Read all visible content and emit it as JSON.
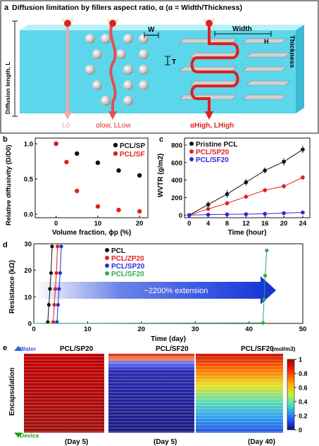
{
  "panel_a": {
    "label": "a",
    "title": "Diffusion limitation by fillers aspect ratio, α (α = Width/Thickness)",
    "diffusion_length": "Diffusion length, L",
    "W": "W",
    "T": "T",
    "width": "Width",
    "thickness": "Thickness",
    "H": "H",
    "L0": "L0",
    "alpha_low": "αlow, LLow",
    "alpha_high": "αHigh, LHigh"
  },
  "panel_b": {
    "label": "b",
    "chart_data": {
      "type": "scatter",
      "xlabel": "Volume fraction, ϕp (%)",
      "ylabel": "Relative diffusivity (D/D0)",
      "xlim": [
        -5,
        22
      ],
      "ylim": [
        -0.05,
        1.08
      ],
      "xticks": [
        "0",
        "10",
        "20"
      ],
      "yticks": [
        "0.0",
        "0.5",
        "1.0"
      ],
      "legend_position": "top-right",
      "series": [
        {
          "name": "PCL/SP",
          "color": "#111111",
          "x": [
            0,
            5,
            10,
            15,
            20
          ],
          "y": [
            1.0,
            0.86,
            0.73,
            0.62,
            0.55
          ]
        },
        {
          "name": "PCL/SF",
          "color": "#e02020",
          "x": [
            0,
            2.5,
            5,
            10,
            15,
            20
          ],
          "y": [
            1.0,
            0.74,
            0.33,
            0.11,
            0.06,
            0.04
          ]
        }
      ]
    }
  },
  "panel_c": {
    "label": "c",
    "chart_data": {
      "type": "line",
      "xlabel": "Time (hour)",
      "ylabel": "WVTR (g/m2)",
      "xlim": [
        -1,
        25.5
      ],
      "ylim": [
        -30,
        880
      ],
      "xticks": [
        "0",
        "4",
        "8",
        "12",
        "16",
        "20",
        "24"
      ],
      "yticks": [
        "0",
        "200",
        "400",
        "600",
        "800"
      ],
      "legend_position": "top-left",
      "series": [
        {
          "name": "Pristine PCL",
          "color": "#111111",
          "x": [
            0,
            4,
            8,
            12,
            16,
            20,
            24
          ],
          "y": [
            0,
            120,
            240,
            375,
            510,
            610,
            750
          ],
          "err": [
            10,
            40,
            45,
            40,
            35,
            45,
            45
          ]
        },
        {
          "name": "PCL/SP20",
          "color": "#e02020",
          "x": [
            0,
            4,
            8,
            12,
            16,
            20,
            24
          ],
          "y": [
            0,
            70,
            135,
            210,
            285,
            330,
            430
          ],
          "err": [
            8,
            20,
            25,
            25,
            25,
            30,
            30
          ]
        },
        {
          "name": "PCL/SF20",
          "color": "#2a2ae0",
          "x": [
            0,
            4,
            8,
            12,
            16,
            20,
            24
          ],
          "y": [
            0,
            5,
            8,
            10,
            15,
            22,
            30
          ],
          "err": [
            3,
            4,
            4,
            4,
            4,
            5,
            6
          ]
        }
      ]
    }
  },
  "panel_d": {
    "label": "d",
    "chart_data": {
      "type": "line",
      "xlabel": "Time (day)",
      "ylabel": "Resistance (kΩ)",
      "xlim": [
        0,
        50
      ],
      "ylim": [
        0,
        30
      ],
      "xticks": [
        "0",
        "10",
        "20",
        "30",
        "40",
        "50"
      ],
      "yticks": [
        "0",
        "10",
        "20",
        "30"
      ],
      "legend_position": "top-left",
      "annotation": "~2200% extension",
      "series": [
        {
          "name": "PCL",
          "color": "#111111",
          "x": [
            2.6,
            2.8,
            3.0,
            3.2,
            3.4
          ],
          "y": [
            0.5,
            7,
            13,
            19,
            29
          ]
        },
        {
          "name": "PCL/ZP20",
          "color": "#e02020",
          "x": [
            3.6,
            3.8,
            4.0,
            4.2,
            4.4
          ],
          "y": [
            0.5,
            7,
            13,
            19,
            29
          ]
        },
        {
          "name": "PCL/SP20",
          "color": "#2a2ae0",
          "x": [
            4.3,
            4.5,
            4.7,
            4.9,
            5.1
          ],
          "y": [
            0.5,
            7,
            13,
            19,
            29
          ]
        },
        {
          "name": "PCL/SF20",
          "color": "#33aa55",
          "x": [
            0,
            42.6,
            42.8,
            43.0,
            43.3
          ],
          "y": [
            0,
            0.2,
            9,
            18,
            27.5
          ]
        }
      ]
    }
  },
  "panel_e": {
    "label": "e",
    "titles": [
      "PCL/SP20",
      "PCL/SF20",
      "PCL/SF20"
    ],
    "days": [
      "(Day 5)",
      "(Day 5)",
      "(Day 40)"
    ],
    "water": "Water",
    "device": "Device",
    "encapsulation": "Encapsulation",
    "unit": "(mol/m3)",
    "colorbar_ticks": [
      "1",
      "0.8",
      "0.6",
      "0.4",
      "0.2",
      "0"
    ]
  }
}
